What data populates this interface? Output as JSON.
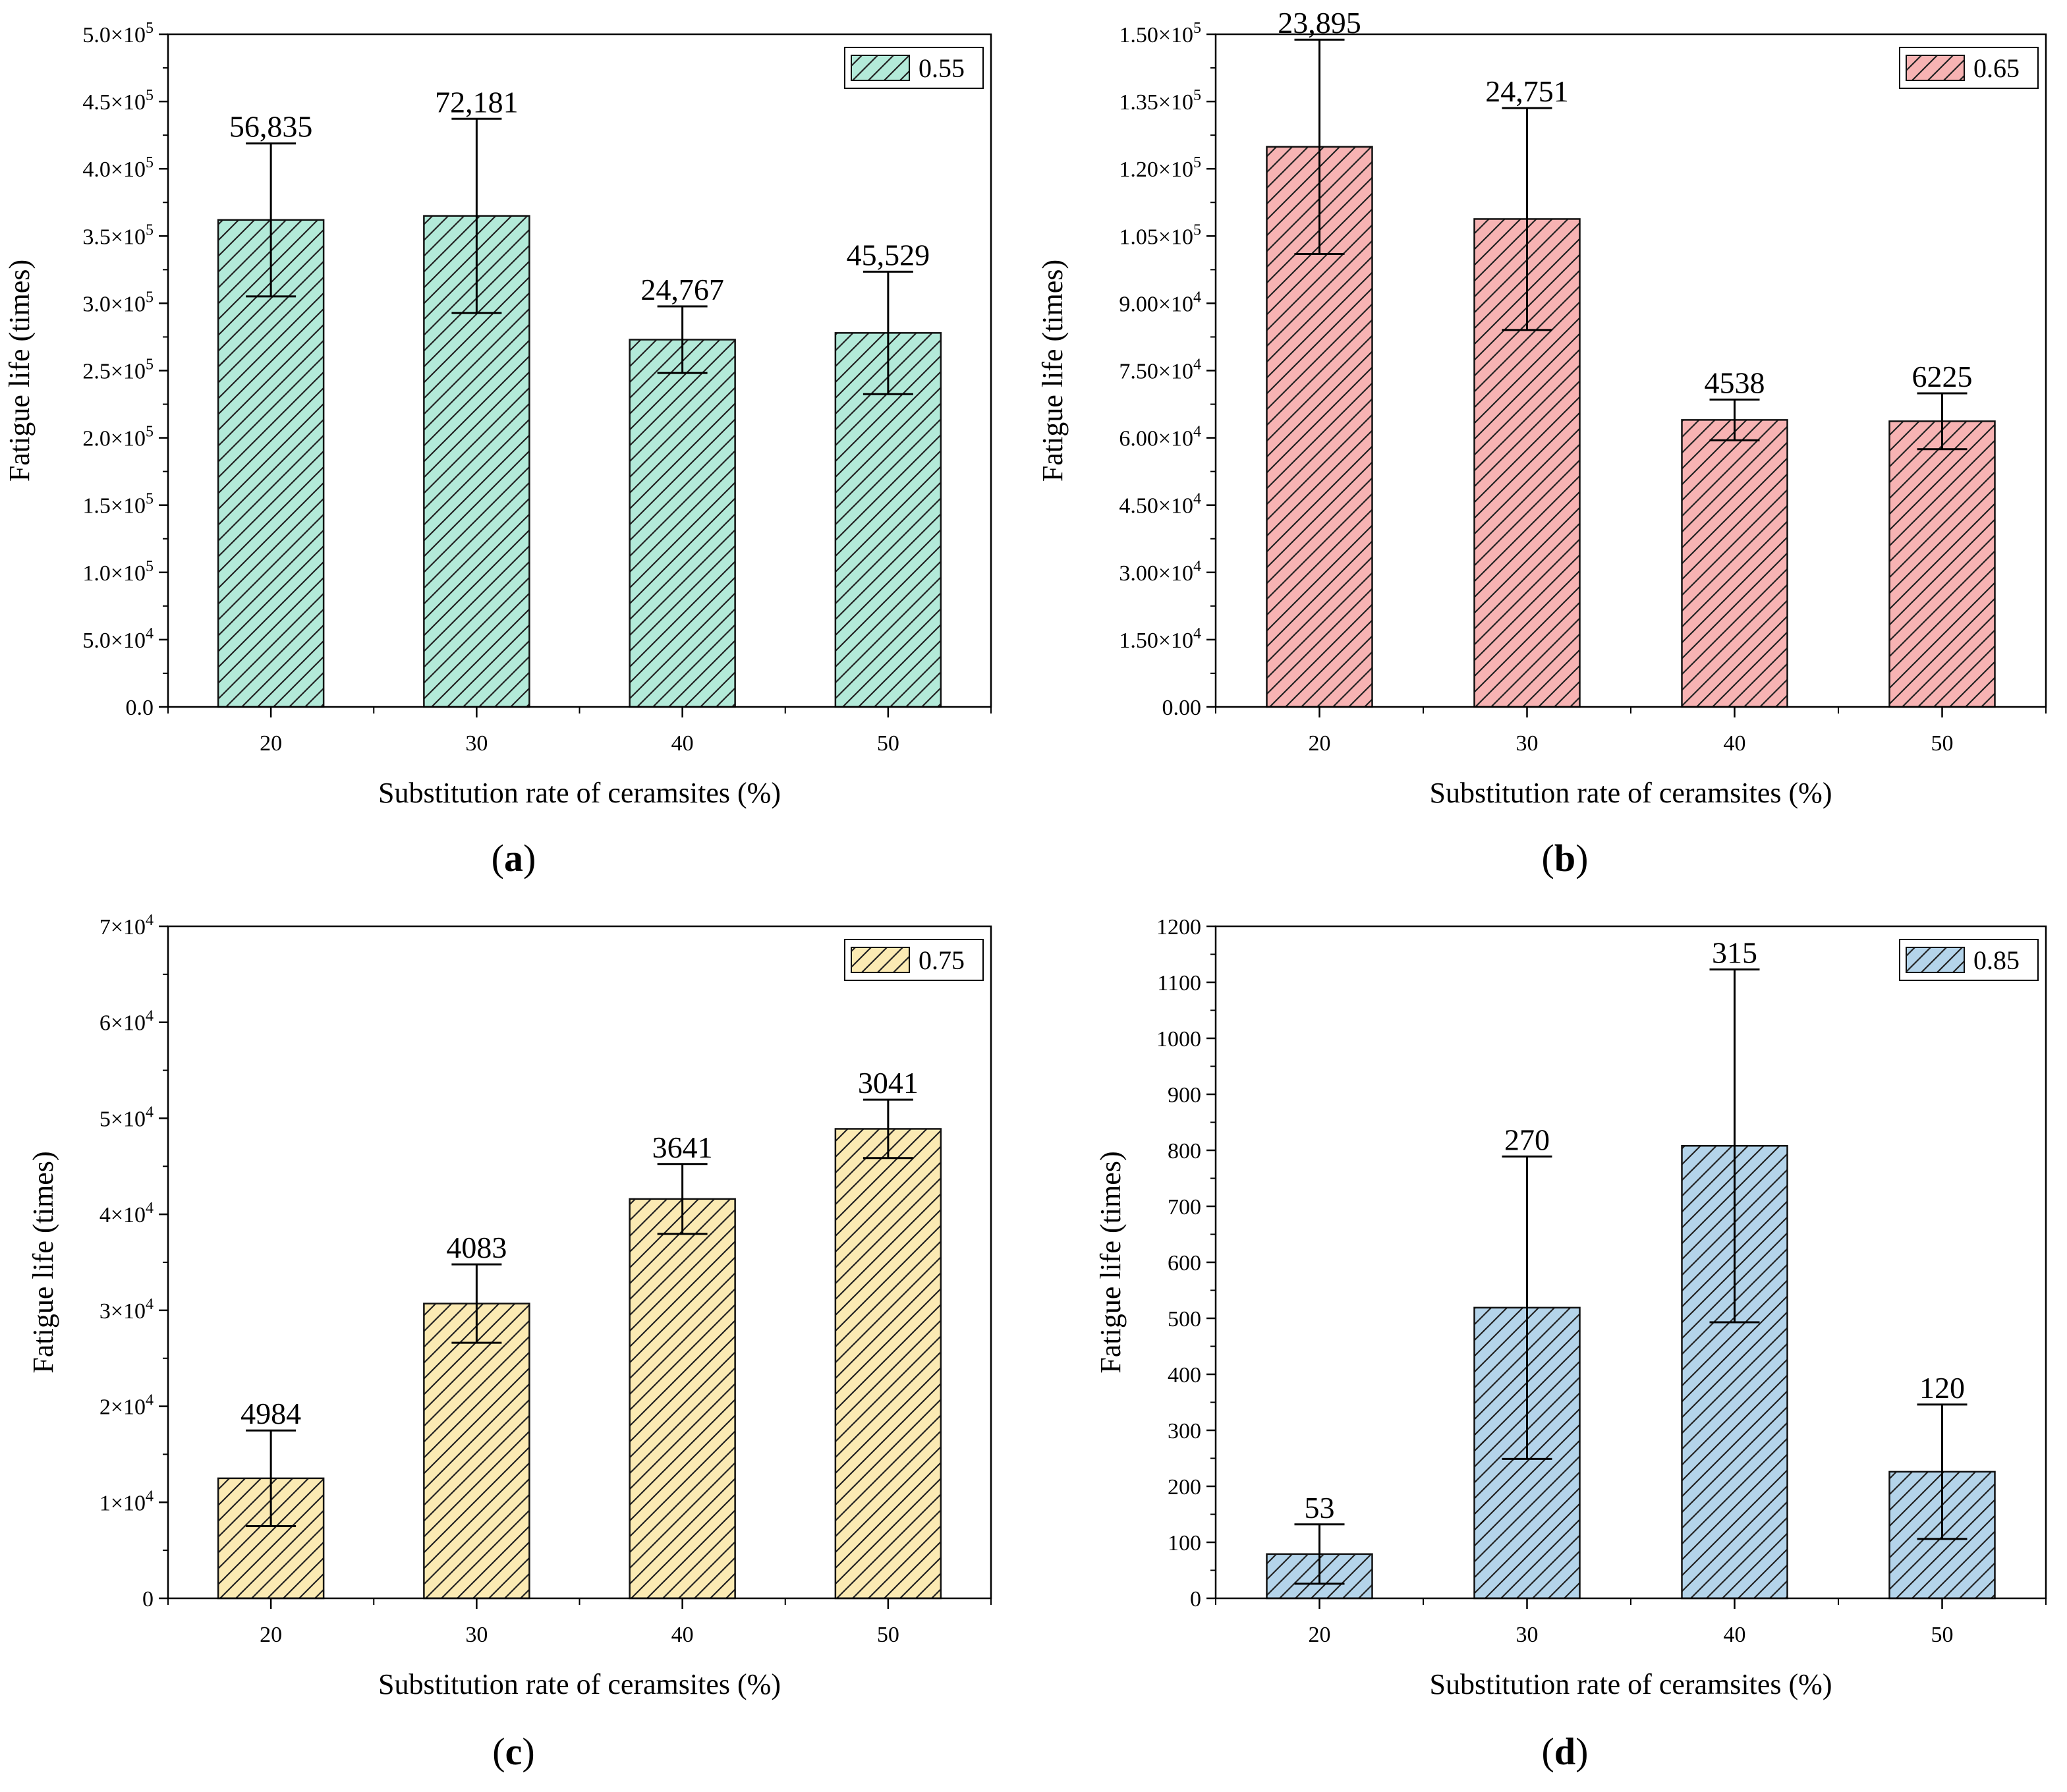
{
  "figure": {
    "background": "#ffffff",
    "axis_color": "#000000"
  },
  "chart_data": [
    {
      "id": "a",
      "panel_label": "a",
      "type": "bar",
      "title": "",
      "xlabel": "Substitution rate of ceramsites (%)",
      "ylabel": "Fatigue life (times)",
      "categories": [
        "20",
        "30",
        "40",
        "50"
      ],
      "ylim": [
        0,
        500000
      ],
      "yticks": [
        {
          "value": 0,
          "mantissa": "0.0",
          "exp": ""
        },
        {
          "value": 50000,
          "mantissa": "5.0×10",
          "exp": "4"
        },
        {
          "value": 100000,
          "mantissa": "1.0×10",
          "exp": "5"
        },
        {
          "value": 150000,
          "mantissa": "1.5×10",
          "exp": "5"
        },
        {
          "value": 200000,
          "mantissa": "2.0×10",
          "exp": "5"
        },
        {
          "value": 250000,
          "mantissa": "2.5×10",
          "exp": "5"
        },
        {
          "value": 300000,
          "mantissa": "3.0×10",
          "exp": "5"
        },
        {
          "value": 350000,
          "mantissa": "3.5×10",
          "exp": "5"
        },
        {
          "value": 400000,
          "mantissa": "4.0×10",
          "exp": "5"
        },
        {
          "value": 450000,
          "mantissa": "4.5×10",
          "exp": "5"
        },
        {
          "value": 500000,
          "mantissa": "5.0×10",
          "exp": "5"
        }
      ],
      "series": [
        {
          "name": "0.55",
          "color": "#b3ead9",
          "values": [
            362000,
            365000,
            273000,
            278000
          ],
          "errors": [
            56835,
            72181,
            24767,
            45529
          ],
          "error_labels": [
            "56,835",
            "72,181",
            "24,767",
            "45,529"
          ]
        }
      ],
      "legend": "top-right"
    },
    {
      "id": "b",
      "panel_label": "b",
      "type": "bar",
      "title": "",
      "xlabel": "Substitution rate of ceramsites (%)",
      "ylabel": "Fatigue life (times)",
      "categories": [
        "20",
        "30",
        "40",
        "50"
      ],
      "ylim": [
        0,
        150000
      ],
      "yticks": [
        {
          "value": 0,
          "mantissa": "0.00",
          "exp": ""
        },
        {
          "value": 15000,
          "mantissa": "1.50×10",
          "exp": "4"
        },
        {
          "value": 30000,
          "mantissa": "3.00×10",
          "exp": "4"
        },
        {
          "value": 45000,
          "mantissa": "4.50×10",
          "exp": "4"
        },
        {
          "value": 60000,
          "mantissa": "6.00×10",
          "exp": "4"
        },
        {
          "value": 75000,
          "mantissa": "7.50×10",
          "exp": "4"
        },
        {
          "value": 90000,
          "mantissa": "9.00×10",
          "exp": "4"
        },
        {
          "value": 105000,
          "mantissa": "1.05×10",
          "exp": "5"
        },
        {
          "value": 120000,
          "mantissa": "1.20×10",
          "exp": "5"
        },
        {
          "value": 135000,
          "mantissa": "1.35×10",
          "exp": "5"
        },
        {
          "value": 150000,
          "mantissa": "1.50×10",
          "exp": "5"
        }
      ],
      "series": [
        {
          "name": "0.65",
          "color": "#f7b3b3",
          "values": [
            124900,
            108800,
            64000,
            63700
          ],
          "errors": [
            23895,
            24751,
            4538,
            6225
          ],
          "error_labels": [
            "23,895",
            "24,751",
            "4538",
            "6225"
          ]
        }
      ],
      "legend": "top-right"
    },
    {
      "id": "c",
      "panel_label": "c",
      "type": "bar",
      "title": "",
      "xlabel": "Substitution rate of ceramsites (%)",
      "ylabel": "Fatigue life (times)",
      "categories": [
        "20",
        "30",
        "40",
        "50"
      ],
      "ylim": [
        0,
        70000
      ],
      "yticks": [
        {
          "value": 0,
          "mantissa": "0",
          "exp": ""
        },
        {
          "value": 10000,
          "mantissa": "1×10",
          "exp": "4"
        },
        {
          "value": 20000,
          "mantissa": "2×10",
          "exp": "4"
        },
        {
          "value": 30000,
          "mantissa": "3×10",
          "exp": "4"
        },
        {
          "value": 40000,
          "mantissa": "4×10",
          "exp": "4"
        },
        {
          "value": 50000,
          "mantissa": "5×10",
          "exp": "4"
        },
        {
          "value": 60000,
          "mantissa": "6×10",
          "exp": "4"
        },
        {
          "value": 70000,
          "mantissa": "7×10",
          "exp": "4"
        }
      ],
      "series": [
        {
          "name": "0.75",
          "color": "#fbeab3",
          "values": [
            12500,
            30700,
            41600,
            48900
          ],
          "errors": [
            4984,
            4083,
            3641,
            3041
          ],
          "error_labels": [
            "4984",
            "4083",
            "3641",
            "3041"
          ]
        }
      ],
      "legend": "top-right"
    },
    {
      "id": "d",
      "panel_label": "d",
      "type": "bar",
      "title": "",
      "xlabel": "Substitution rate of ceramsites (%)",
      "ylabel": "Fatigue life (times)",
      "categories": [
        "20",
        "30",
        "40",
        "50"
      ],
      "ylim": [
        0,
        1200
      ],
      "yticks": [
        {
          "value": 0,
          "mantissa": "0",
          "exp": ""
        },
        {
          "value": 100,
          "mantissa": "100",
          "exp": ""
        },
        {
          "value": 200,
          "mantissa": "200",
          "exp": ""
        },
        {
          "value": 300,
          "mantissa": "300",
          "exp": ""
        },
        {
          "value": 400,
          "mantissa": "400",
          "exp": ""
        },
        {
          "value": 500,
          "mantissa": "500",
          "exp": ""
        },
        {
          "value": 600,
          "mantissa": "600",
          "exp": ""
        },
        {
          "value": 700,
          "mantissa": "700",
          "exp": ""
        },
        {
          "value": 800,
          "mantissa": "800",
          "exp": ""
        },
        {
          "value": 900,
          "mantissa": "900",
          "exp": ""
        },
        {
          "value": 1000,
          "mantissa": "1000",
          "exp": ""
        },
        {
          "value": 1100,
          "mantissa": "1100",
          "exp": ""
        },
        {
          "value": 1200,
          "mantissa": "1200",
          "exp": ""
        }
      ],
      "series": [
        {
          "name": "0.85",
          "color": "#b4d4ea",
          "values": [
            79,
            519,
            808,
            226
          ],
          "errors": [
            53,
            270,
            315,
            120
          ],
          "error_labels": [
            "53",
            "270",
            "315",
            "120"
          ]
        }
      ],
      "legend": "top-right"
    }
  ]
}
